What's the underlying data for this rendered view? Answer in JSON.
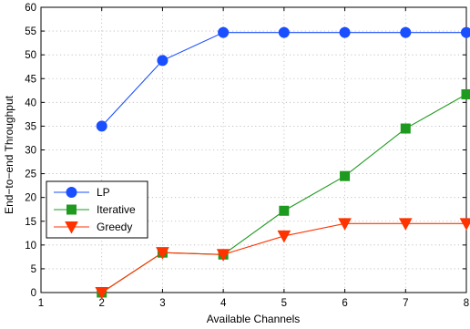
{
  "chart_data": {
    "type": "line",
    "xlabel": "Available Channels",
    "ylabel": "End−to−end Throughput",
    "xlim": [
      1,
      8
    ],
    "ylim": [
      0,
      60
    ],
    "x_ticks": [
      1,
      2,
      3,
      4,
      5,
      6,
      7,
      8
    ],
    "y_ticks": [
      0,
      5,
      10,
      15,
      20,
      25,
      30,
      35,
      40,
      45,
      50,
      55,
      60
    ],
    "grid": true,
    "legend_position": "lower-left",
    "series": [
      {
        "name": "LP",
        "color": "#1a4fff",
        "marker": "circle",
        "x": [
          2,
          3,
          4,
          5,
          6,
          7,
          8
        ],
        "y": [
          35.0,
          48.8,
          54.7,
          54.7,
          54.7,
          54.7,
          54.7
        ]
      },
      {
        "name": "Iterative",
        "color": "#1e9a1e",
        "marker": "square",
        "x": [
          2,
          3,
          4,
          5,
          6,
          7,
          8
        ],
        "y": [
          0,
          8.4,
          8.0,
          17.2,
          24.5,
          34.5,
          41.7
        ]
      },
      {
        "name": "Greedy",
        "color": "#ff3300",
        "marker": "triangle-down",
        "x": [
          2,
          3,
          4,
          5,
          6,
          7,
          8
        ],
        "y": [
          0,
          8.4,
          8.0,
          11.9,
          14.5,
          14.5,
          14.5
        ]
      }
    ]
  }
}
